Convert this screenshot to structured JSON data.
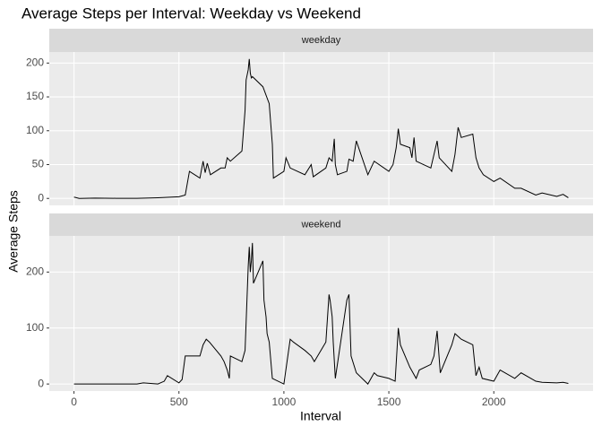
{
  "chart_data": {
    "type": "line",
    "title": "Average Steps per Interval: Weekday vs Weekend",
    "x_label": "Interval",
    "y_label": "Average Steps",
    "panels": [
      {
        "type": "line",
        "facet": "weekday",
        "color": "#000000",
        "grid": true,
        "xlim": [
          -117.75,
          2472.75
        ],
        "xticks": [
          0,
          500,
          1000,
          1500,
          2000
        ],
        "ylim": [
          -10.3,
          216.3
        ],
        "yticks": [
          0,
          50,
          100,
          150,
          200
        ],
        "x": [
          0,
          25,
          100,
          200,
          300,
          400,
          500,
          530,
          550,
          600,
          615,
          625,
          635,
          650,
          700,
          720,
          730,
          745,
          800,
          815,
          820,
          830,
          835,
          840,
          845,
          850,
          900,
          930,
          945,
          950,
          1000,
          1010,
          1030,
          1100,
          1130,
          1140,
          1200,
          1215,
          1230,
          1240,
          1245,
          1255,
          1300,
          1310,
          1330,
          1345,
          1400,
          1430,
          1500,
          1520,
          1535,
          1545,
          1555,
          1600,
          1610,
          1620,
          1630,
          1700,
          1715,
          1730,
          1740,
          1800,
          1815,
          1830,
          1845,
          1900,
          1915,
          1930,
          1940,
          1950,
          2000,
          2030,
          2100,
          2130,
          2200,
          2230,
          2300,
          2330,
          2355
        ],
        "values": [
          2,
          0,
          0.5,
          0.2,
          0.1,
          1,
          2.5,
          5,
          40,
          30,
          55,
          38,
          52,
          35,
          45,
          45,
          60,
          55,
          70,
          130,
          175,
          190,
          206,
          185,
          178,
          180,
          165,
          140,
          80,
          30,
          40,
          60,
          45,
          35,
          50,
          32,
          45,
          60,
          55,
          88,
          50,
          35,
          40,
          58,
          55,
          85,
          35,
          55,
          40,
          50,
          75,
          103,
          80,
          75,
          60,
          90,
          55,
          45,
          65,
          85,
          60,
          40,
          65,
          105,
          90,
          95,
          60,
          45,
          40,
          35,
          25,
          30,
          15,
          15,
          5,
          8,
          3,
          6,
          1
        ]
      },
      {
        "type": "line",
        "facet": "weekend",
        "color": "#000000",
        "grid": true,
        "xlim": [
          -117.75,
          2472.75
        ],
        "xticks": [
          0,
          500,
          1000,
          1500,
          2000
        ],
        "ylim": [
          -12.6,
          264.6
        ],
        "yticks": [
          0,
          100,
          200
        ],
        "x": [
          0,
          100,
          300,
          330,
          400,
          430,
          445,
          500,
          515,
          530,
          600,
          615,
          630,
          645,
          700,
          715,
          730,
          740,
          745,
          800,
          815,
          830,
          835,
          840,
          845,
          850,
          855,
          900,
          905,
          915,
          920,
          930,
          945,
          1000,
          1015,
          1030,
          1045,
          1100,
          1130,
          1145,
          1200,
          1215,
          1220,
          1230,
          1235,
          1245,
          1300,
          1310,
          1320,
          1345,
          1400,
          1430,
          1445,
          1500,
          1530,
          1545,
          1555,
          1600,
          1630,
          1645,
          1700,
          1715,
          1730,
          1745,
          1800,
          1815,
          1830,
          1845,
          1900,
          1915,
          1930,
          1945,
          2000,
          2030,
          2100,
          2130,
          2200,
          2230,
          2300,
          2330,
          2355
        ],
        "values": [
          0,
          0,
          0,
          2,
          0,
          5,
          15,
          2,
          8,
          50,
          50,
          70,
          80,
          75,
          50,
          40,
          25,
          10,
          50,
          40,
          60,
          210,
          245,
          200,
          220,
          252,
          180,
          220,
          150,
          120,
          90,
          75,
          10,
          0,
          40,
          80,
          75,
          60,
          50,
          40,
          75,
          160,
          150,
          120,
          75,
          10,
          150,
          160,
          50,
          20,
          0,
          20,
          15,
          10,
          5,
          100,
          70,
          30,
          10,
          25,
          35,
          50,
          95,
          20,
          70,
          90,
          85,
          80,
          70,
          15,
          30,
          10,
          5,
          25,
          10,
          20,
          5,
          3,
          2,
          3,
          1
        ]
      }
    ]
  }
}
